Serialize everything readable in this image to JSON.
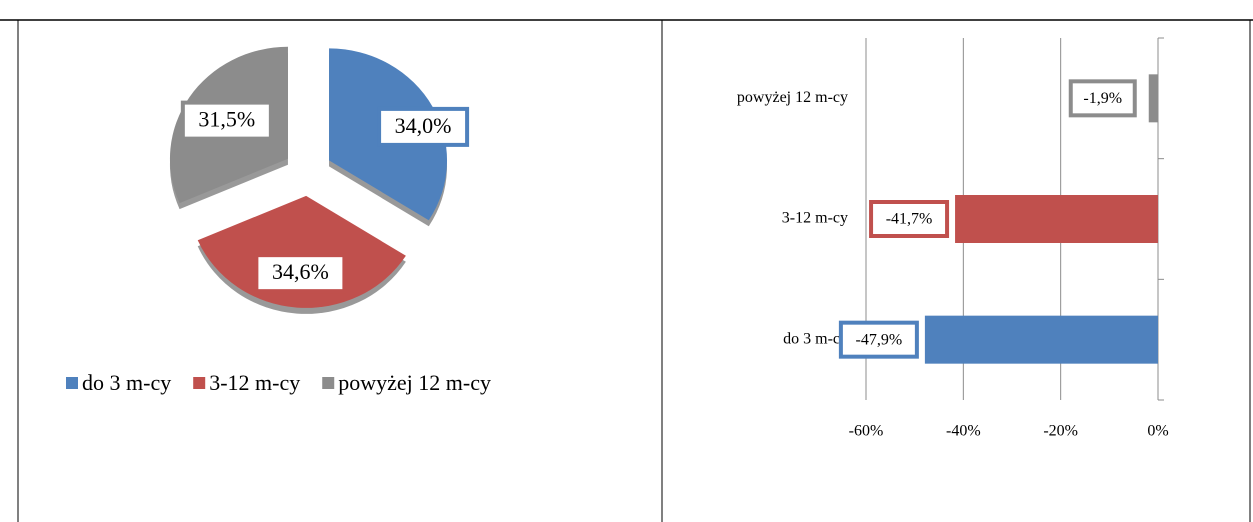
{
  "chart_data": [
    {
      "type": "pie",
      "categories": [
        "do 3 m-cy",
        "3-12 m-cy",
        "powyżej 12 m-cy"
      ],
      "values": [
        34.0,
        34.6,
        31.5
      ],
      "value_labels": [
        "34,0%",
        "34,6%",
        "31,5%"
      ],
      "colors": [
        "#4f81bd",
        "#c0504d",
        "#8c8c8c"
      ],
      "legend": "bottom"
    },
    {
      "type": "barh",
      "categories": [
        "do 3 m-cy",
        "3-12 m-cy",
        "powyżej 12 m-cy"
      ],
      "values": [
        -47.9,
        -41.7,
        -1.9
      ],
      "value_labels": [
        "-47,9%",
        "-41,7%",
        "-1,9%"
      ],
      "colors": [
        "#4f81bd",
        "#c0504d",
        "#8c8c8c"
      ],
      "xlim": [
        -60,
        0
      ],
      "xticks": [
        {
          "value": -60,
          "label": "-60%"
        },
        {
          "value": -40,
          "label": "-40%"
        },
        {
          "value": -20,
          "label": "-20%"
        },
        {
          "value": 0,
          "label": "0%"
        }
      ],
      "grid": true
    }
  ]
}
